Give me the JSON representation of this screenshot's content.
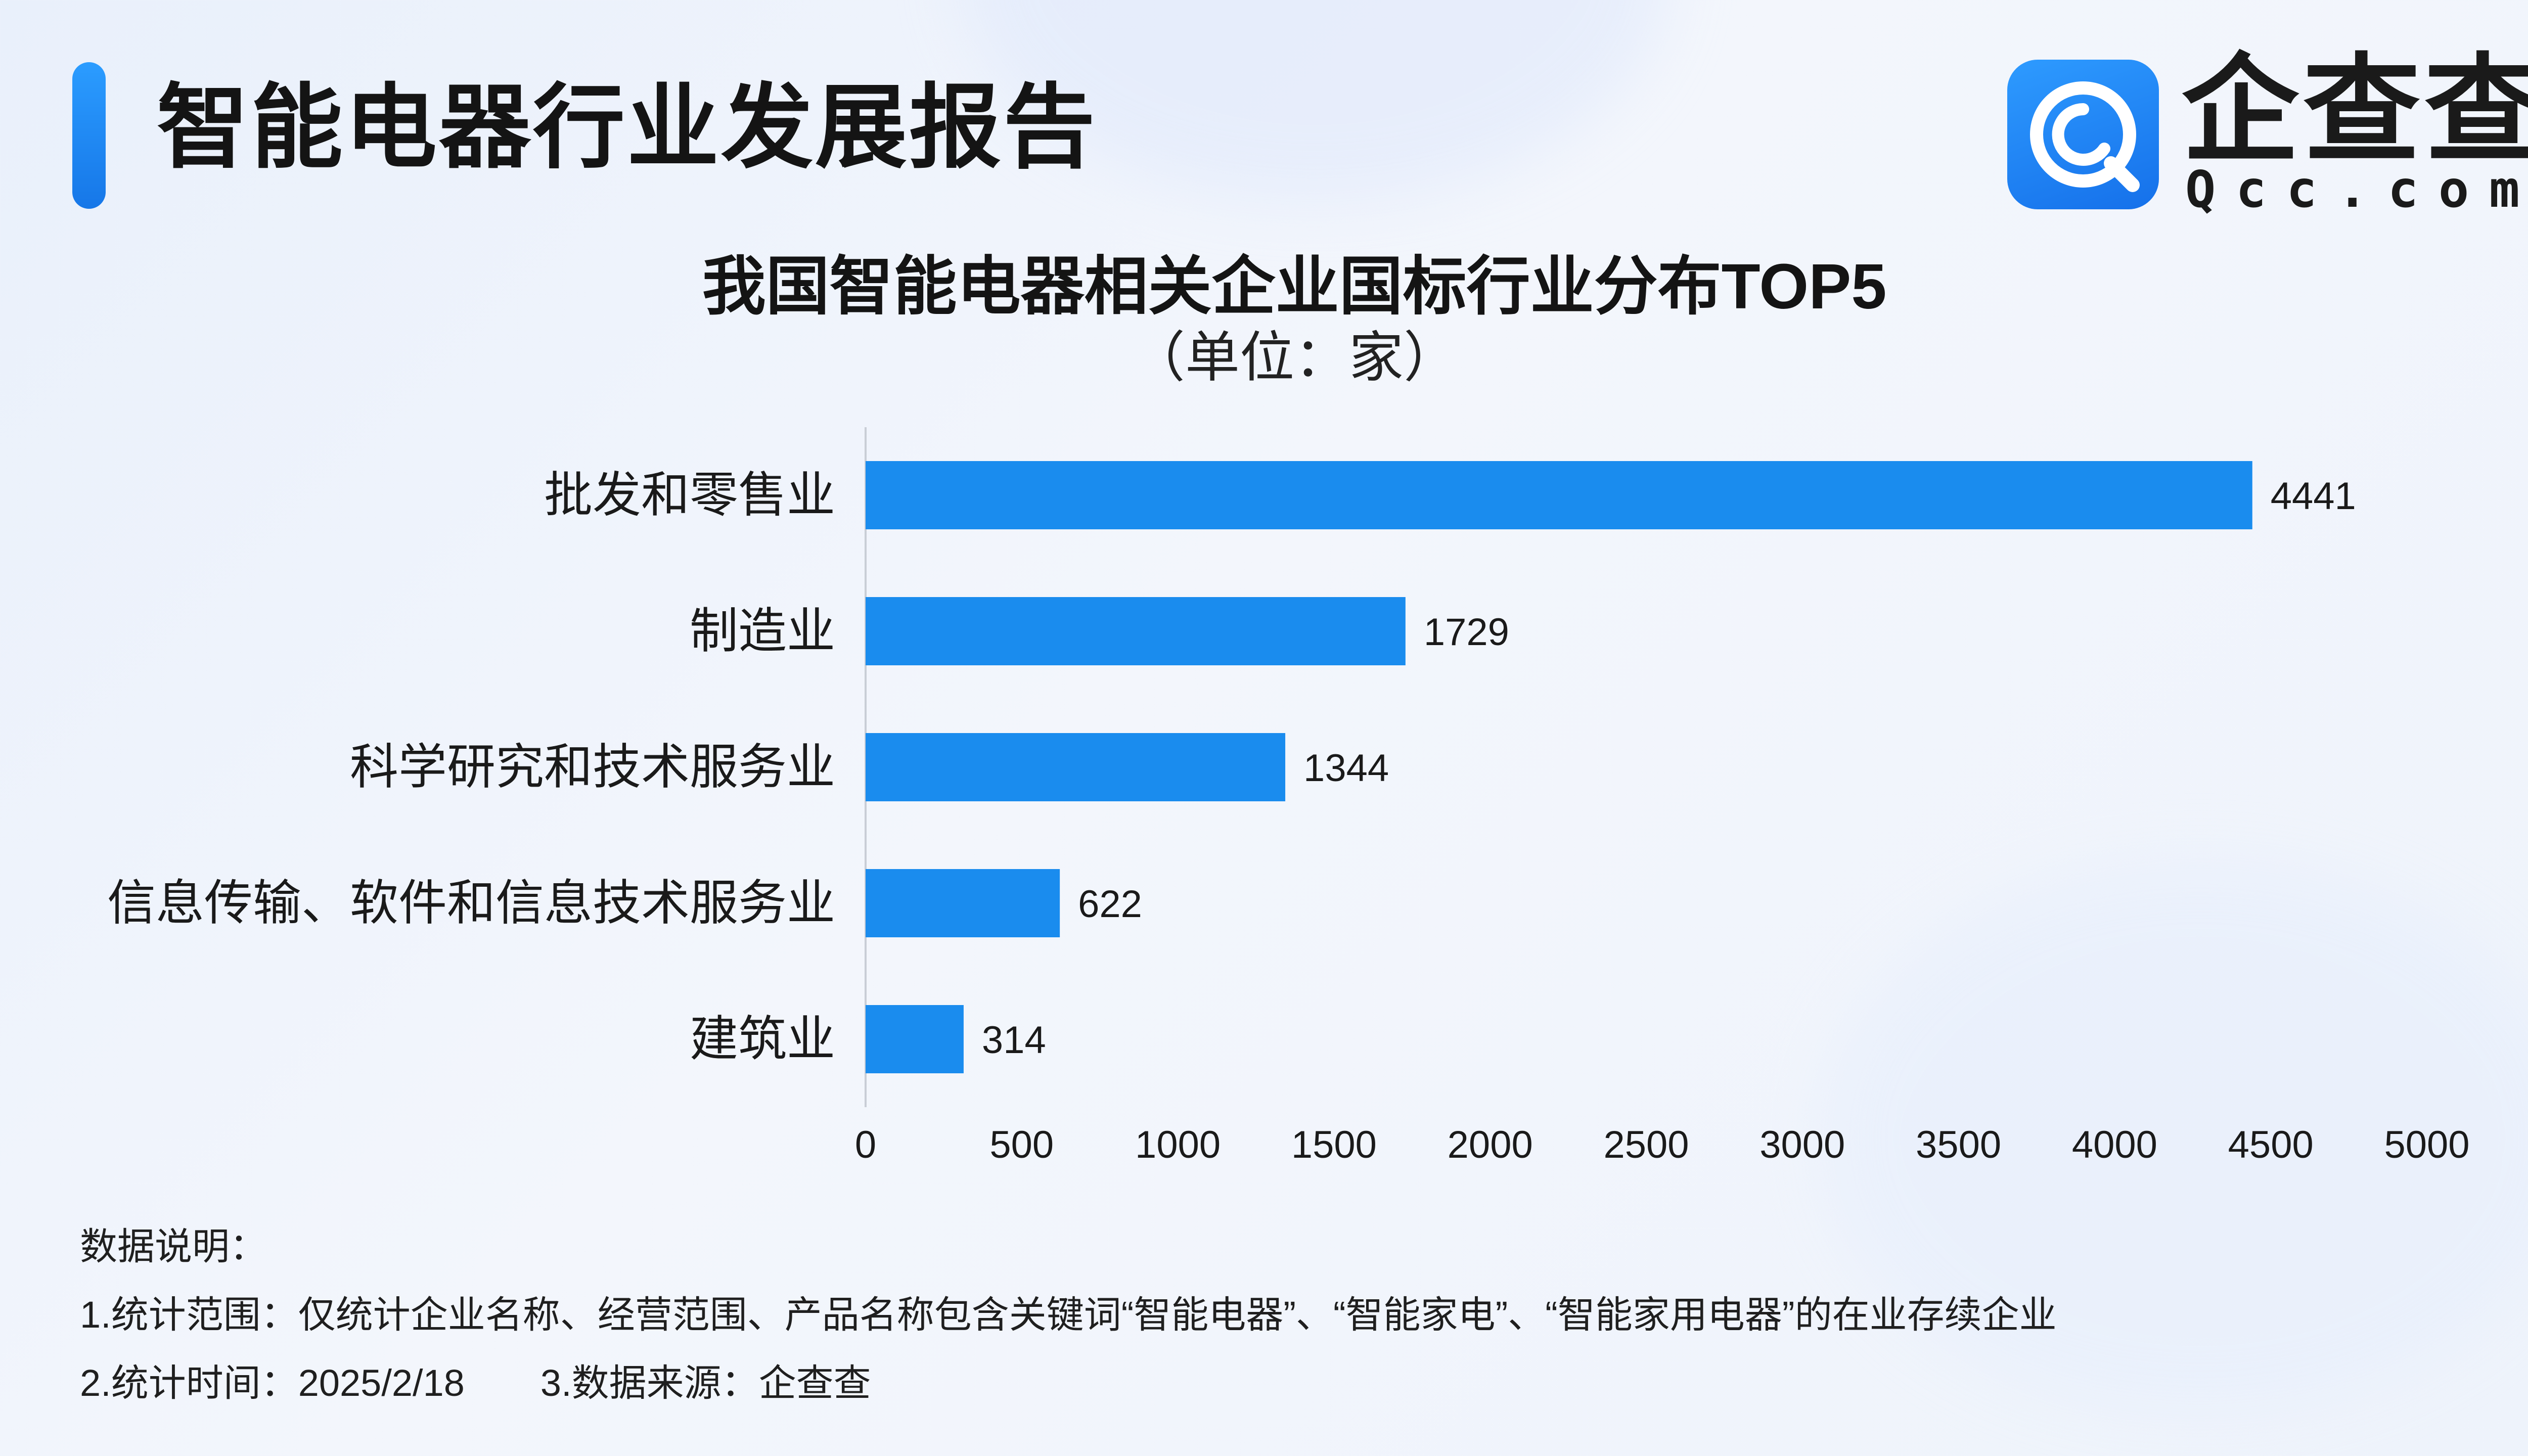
{
  "report": {
    "title": "智能电器行业发展报告"
  },
  "logo": {
    "cn": "企查查",
    "en": "Qcc.com",
    "brand_color": "#1a7ff0"
  },
  "chart_data": {
    "type": "bar",
    "orientation": "horizontal",
    "title": "我国智能电器相关企业国标行业分布TOP5",
    "subtitle": "（单位：家）",
    "categories": [
      "批发和零售业",
      "制造业",
      "科学研究和技术服务业",
      "信息传输、软件和信息技术服务业",
      "建筑业"
    ],
    "values": [
      4441,
      1729,
      1344,
      622,
      314
    ],
    "xlim": [
      0,
      5000
    ],
    "xticks": [
      "0",
      "500",
      "1000",
      "1500",
      "2000",
      "2500",
      "3000",
      "3500",
      "4000",
      "4500",
      "5000"
    ],
    "grid": false,
    "bar_color": "#1a8cee"
  },
  "notes": {
    "header": "数据说明：",
    "line1": "1.统计范围：仅统计企业名称、经营范围、产品名称包含关键词“智能电器”、“智能家电”、“智能家用电器”的在业存续企业",
    "time": "2.统计时间：2025/2/18",
    "source": "3.数据来源：企查查"
  }
}
